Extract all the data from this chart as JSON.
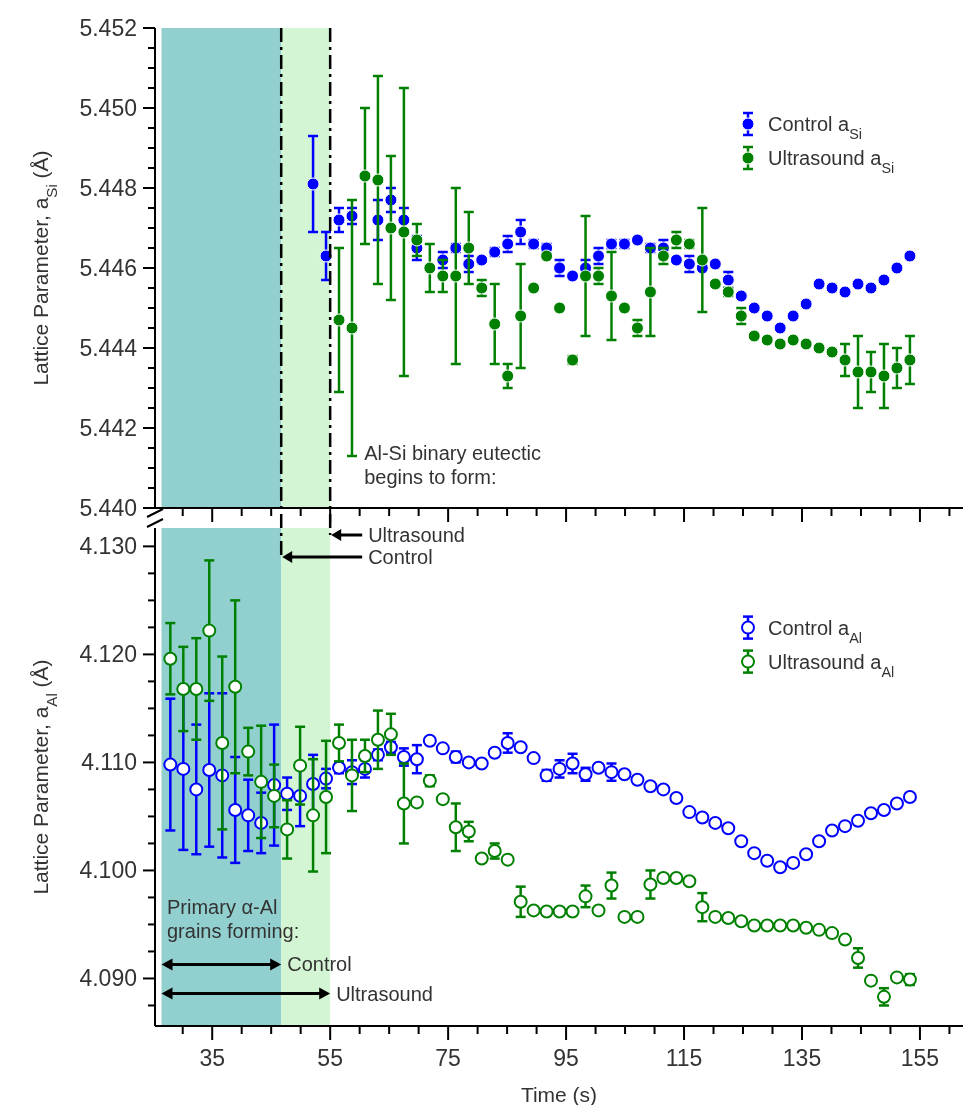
{
  "chart_data": [
    {
      "type": "scatter",
      "ylabel": "Lattice Parameter, a$_{Si}$ (Å)",
      "xlim": [
        25.3,
        162.3
      ],
      "ylim": [
        5.44,
        5.452
      ],
      "xticks": [
        {
          "value": 30,
          "label": null
        },
        35,
        {
          "value": 40,
          "label": null
        },
        {
          "value": 45,
          "label": null
        },
        {
          "value": 50,
          "label": null
        },
        55,
        {
          "value": 60,
          "label": null
        },
        {
          "value": 65,
          "label": null
        },
        {
          "value": 70,
          "label": null
        },
        75,
        {
          "value": 80,
          "label": null
        },
        {
          "value": 85,
          "label": null
        },
        {
          "value": 90,
          "label": null
        },
        95,
        {
          "value": 100,
          "label": null
        },
        {
          "value": 105,
          "label": null
        },
        {
          "value": 110,
          "label": null
        },
        115,
        {
          "value": 120,
          "label": null
        },
        {
          "value": 125,
          "label": null
        },
        {
          "value": 130,
          "label": null
        },
        135,
        {
          "value": 140,
          "label": null
        },
        {
          "value": 145,
          "label": null
        },
        {
          "value": 150,
          "label": null
        },
        155,
        {
          "value": 160,
          "label": null
        }
      ],
      "yticks": [
        {
          "value": 5.44,
          "label": "5.440"
        },
        {
          "value": 5.4405,
          "label": null
        },
        {
          "value": 5.441,
          "label": null
        },
        {
          "value": 5.4415,
          "label": null
        },
        {
          "value": 5.442,
          "label": "5.442"
        },
        {
          "value": 5.4425,
          "label": null
        },
        {
          "value": 5.443,
          "label": null
        },
        {
          "value": 5.4435,
          "label": null
        },
        {
          "value": 5.444,
          "label": "5.444"
        },
        {
          "value": 5.4445,
          "label": null
        },
        {
          "value": 5.445,
          "label": null
        },
        {
          "value": 5.4455,
          "label": null
        },
        {
          "value": 5.446,
          "label": "5.446"
        },
        {
          "value": 5.4465,
          "label": null
        },
        {
          "value": 5.447,
          "label": null
        },
        {
          "value": 5.4475,
          "label": null
        },
        {
          "value": 5.448,
          "label": "5.448"
        },
        {
          "value": 5.4485,
          "label": null
        },
        {
          "value": 5.449,
          "label": null
        },
        {
          "value": 5.4495,
          "label": null
        },
        {
          "value": 5.45,
          "label": "5.450"
        },
        {
          "value": 5.4505,
          "label": null
        },
        {
          "value": 5.451,
          "label": null
        },
        {
          "value": 5.4515,
          "label": null
        },
        {
          "value": 5.452,
          "label": "5.452"
        }
      ],
      "tick_labels": "y",
      "grid": false,
      "legend": "top right",
      "marker": "circle",
      "bands": [
        {
          "axis": "x",
          "from": 26.4,
          "to": 46.7,
          "color": "#92d0cf"
        },
        {
          "axis": "x",
          "from": 46.7,
          "to": 55,
          "color": "#d3f5d3"
        }
      ],
      "ref_lines": [
        {
          "axis": "x",
          "value": 55,
          "label": "Ultrasound",
          "line_style": "dashed",
          "color": "#000000"
        },
        {
          "axis": "x",
          "value": 46.7,
          "label": "Control",
          "line_style": "dashed",
          "color": "#000000"
        }
      ],
      "annotations": [
        "Al-Si binary eutectic\nbegins to form:"
      ],
      "series": [
        {
          "name": "Control a$_{Si}$",
          "color": "#0000ff",
          "x": [
            52.1,
            54.3,
            56.5,
            58.7,
            63.1,
            65.3,
            67.5,
            69.7,
            74.1,
            76.3,
            78.5,
            80.7,
            82.9,
            85.1,
            87.3,
            89.5,
            91.7,
            93.9,
            96.1,
            98.3,
            100.5,
            102.7,
            104.9,
            107.1,
            109.3,
            111.5,
            113.7,
            115.9,
            118.1,
            120.3,
            122.5,
            124.7,
            126.9,
            129.1,
            131.3,
            133.5,
            135.7,
            137.9,
            140.1,
            142.3,
            144.5,
            146.7,
            148.9,
            151.1,
            153.3
          ],
          "values": [
            5.4481,
            5.4463,
            5.4472,
            5.4473,
            5.4472,
            5.4477,
            5.4472,
            5.4465,
            5.4462,
            5.4465,
            5.4461,
            5.4462,
            5.4464,
            5.4466,
            5.4469,
            5.4466,
            5.4465,
            5.446,
            5.4458,
            5.446,
            5.4463,
            5.4466,
            5.4466,
            5.4467,
            5.4465,
            5.4465,
            5.4462,
            5.4461,
            5.446,
            5.4461,
            5.4457,
            5.4453,
            5.445,
            5.4448,
            5.4445,
            5.4448,
            5.4451,
            5.4456,
            5.4455,
            5.4454,
            5.4456,
            5.4455,
            5.4457,
            5.446,
            5.4463
          ],
          "errors": [
            0.0012,
            0.0006,
            0.0003,
            0.0002,
            0.0005,
            0.0003,
            0.0003,
            0.0003,
            0.0002,
            0.0001,
            0.0002,
            null,
            0.0001,
            0.0002,
            0.0003,
            0.0001,
            0.0001,
            0.0002,
            null,
            0.0002,
            0.0002,
            0.0001,
            0.0001,
            null,
            0.0001,
            0.0002,
            null,
            0.0002,
            null,
            null,
            0.0002,
            null,
            null,
            null,
            null,
            null,
            null,
            null,
            null,
            null,
            null,
            null,
            null,
            null,
            null
          ]
        },
        {
          "name": "Ultrasound a$_{Si}$",
          "color": "#008000",
          "x": [
            56.5,
            58.7,
            60.9,
            63.1,
            65.3,
            67.5,
            69.7,
            71.9,
            74.1,
            76.3,
            78.5,
            80.7,
            82.9,
            85.1,
            87.3,
            89.5,
            91.7,
            93.9,
            96.1,
            98.3,
            100.5,
            102.7,
            104.9,
            107.1,
            109.3,
            111.5,
            113.7,
            115.9,
            118.1,
            120.3,
            122.5,
            124.7,
            126.9,
            129.1,
            131.3,
            133.5,
            135.7,
            137.9,
            140.1,
            142.3,
            144.5,
            146.7,
            148.9,
            151.1,
            153.3
          ],
          "values": [
            5.4447,
            5.4445,
            5.4483,
            5.4482,
            5.447,
            5.4469,
            5.4467,
            5.446,
            5.4458,
            5.4458,
            5.4465,
            5.4455,
            5.4446,
            5.4433,
            5.4448,
            5.4455,
            5.4463,
            5.445,
            5.4437,
            5.4458,
            5.4458,
            5.4453,
            5.445,
            5.4445,
            5.4454,
            5.4463,
            5.4467,
            5.4466,
            5.4462,
            5.4456,
            5.4454,
            5.4448,
            5.4443,
            5.4442,
            5.4441,
            5.4442,
            5.4441,
            5.444,
            5.4439,
            5.4437,
            5.4434,
            5.4434,
            5.4433,
            5.4435,
            5.4437
          ],
          "errors": [
            0.0018,
            0.0032,
            0.0017,
            0.0026,
            0.0018,
            0.0036,
            0.0004,
            0.0006,
            0.0004,
            0.0022,
            0.0009,
            0.0002,
            0.001,
            0.0003,
            0.0013,
            null,
            null,
            null,
            0.0001,
            0.0015,
            0.0002,
            0.0011,
            null,
            0.0002,
            0.0011,
            0.0002,
            0.0002,
            0.0001,
            0.0013,
            null,
            0.0001,
            0.0002,
            null,
            null,
            null,
            null,
            null,
            null,
            null,
            0.0004,
            0.0009,
            0.0005,
            0.0008,
            0.0005,
            0.0006
          ]
        }
      ]
    },
    {
      "type": "scatter",
      "xlabel": "Time (s)",
      "ylabel": "Lattice Parameter, a$_{Al}$ (Å)",
      "xlim": [
        25.3,
        162.3
      ],
      "ylim": [
        4.0856,
        4.1317
      ],
      "xticks": [
        {
          "value": 30,
          "label": null
        },
        35,
        {
          "value": 40,
          "label": null
        },
        {
          "value": 45,
          "label": null
        },
        {
          "value": 50,
          "label": null
        },
        55,
        {
          "value": 60,
          "label": null
        },
        {
          "value": 65,
          "label": null
        },
        {
          "value": 70,
          "label": null
        },
        75,
        {
          "value": 80,
          "label": null
        },
        {
          "value": 85,
          "label": null
        },
        {
          "value": 90,
          "label": null
        },
        95,
        {
          "value": 100,
          "label": null
        },
        {
          "value": 105,
          "label": null
        },
        {
          "value": 110,
          "label": null
        },
        115,
        {
          "value": 120,
          "label": null
        },
        {
          "value": 125,
          "label": null
        },
        {
          "value": 130,
          "label": null
        },
        135,
        {
          "value": 140,
          "label": null
        },
        {
          "value": 145,
          "label": null
        },
        {
          "value": 150,
          "label": null
        },
        155,
        {
          "value": 160,
          "label": null
        }
      ],
      "yticks": [
        {
          "value": 4.0875,
          "label": null
        },
        {
          "value": 4.09,
          "label": "4.090"
        },
        {
          "value": 4.0925,
          "label": null
        },
        {
          "value": 4.095,
          "label": null
        },
        {
          "value": 4.0975,
          "label": null
        },
        {
          "value": 4.1,
          "label": "4.100"
        },
        {
          "value": 4.1025,
          "label": null
        },
        {
          "value": 4.105,
          "label": null
        },
        {
          "value": 4.1075,
          "label": null
        },
        {
          "value": 4.11,
          "label": "4.110"
        },
        {
          "value": 4.1125,
          "label": null
        },
        {
          "value": 4.115,
          "label": null
        },
        {
          "value": 4.1175,
          "label": null
        },
        {
          "value": 4.12,
          "label": "4.120"
        },
        {
          "value": 4.1225,
          "label": null
        },
        {
          "value": 4.125,
          "label": null
        },
        {
          "value": 4.1275,
          "label": null
        },
        {
          "value": 4.13,
          "label": "4.130"
        }
      ],
      "grid": false,
      "legend": "top right",
      "marker": "circle",
      "bands": [
        {
          "axis": "x",
          "from": 26.4,
          "to": 46.7,
          "color": "#92d0cf"
        },
        {
          "axis": "x",
          "from": 46.7,
          "to": 55,
          "color": "#d3f5d3"
        }
      ],
      "annotations": [
        "Primary α-Al\ngrains forming:",
        {
          "text": "Control",
          "x": 46.7,
          "y": 4.0913
        },
        {
          "text": "Ultrasound",
          "x": 55,
          "y": 4.0886
        }
      ],
      "series": [
        {
          "name": "Control a$_{Al}$",
          "color": "#0000ff",
          "x": [
            27.9,
            30.1,
            32.3,
            34.5,
            36.7,
            38.9,
            41.1,
            43.3,
            45.5,
            47.7,
            49.9,
            52.1,
            54.3,
            56.5,
            58.7,
            60.9,
            63.1,
            65.3,
            67.5,
            69.7,
            71.9,
            74.1,
            76.3,
            78.5,
            80.7,
            82.9,
            85.1,
            87.3,
            89.5,
            91.7,
            93.9,
            96.1,
            98.3,
            100.5,
            102.7,
            104.9,
            107.1,
            109.3,
            111.5,
            113.7,
            115.9,
            118.1,
            120.3,
            122.5,
            124.7,
            126.9,
            129.1,
            131.3,
            133.5,
            135.7,
            137.9,
            140.1,
            142.3,
            144.5,
            146.7,
            148.9,
            151.1,
            153.3
          ],
          "values": [
            4.1098,
            4.1094,
            4.1075,
            4.1093,
            4.1088,
            4.1056,
            4.1051,
            4.1044,
            4.1079,
            4.1071,
            4.1069,
            4.108,
            4.1085,
            4.1095,
            4.1091,
            4.1094,
            4.1107,
            4.1114,
            4.1105,
            4.1103,
            4.112,
            4.1113,
            4.1105,
            4.11,
            4.1099,
            4.1109,
            4.1118,
            4.1114,
            4.1104,
            4.1088,
            4.1094,
            4.1099,
            4.1089,
            4.1095,
            4.1091,
            4.1089,
            4.1084,
            4.1078,
            4.1075,
            4.1067,
            4.1054,
            4.1049,
            4.1044,
            4.1039,
            4.1027,
            4.1016,
            4.1009,
            4.1003,
            4.1007,
            4.1015,
            4.1027,
            4.1037,
            4.1041,
            4.1046,
            4.1053,
            4.1056,
            4.1062,
            4.1068
          ],
          "errors": [
            0.0061,
            0.0075,
            0.006,
            0.0071,
            0.0076,
            0.0049,
            0.0033,
            0.0028,
            0.0056,
            0.0015,
            0.0028,
            0.0027,
            0.0009,
            0.0005,
            0.0011,
            0.0008,
            0.0005,
            0.0005,
            0.0008,
            0.0013,
            null,
            null,
            0.0005,
            null,
            null,
            null,
            0.0009,
            null,
            null,
            0.0005,
            0.0008,
            0.0009,
            0.0006,
            null,
            0.0008,
            null,
            null,
            null,
            null,
            null,
            null,
            null,
            null,
            null,
            null,
            null,
            null,
            null,
            null,
            null,
            null,
            null,
            null,
            null,
            null,
            null,
            null,
            null
          ]
        },
        {
          "name": "Ultrasound a$_{Al}$",
          "color": "#008000",
          "x": [
            27.9,
            30.1,
            32.3,
            34.5,
            36.7,
            38.9,
            41.1,
            43.3,
            45.5,
            47.7,
            49.9,
            52.1,
            54.3,
            56.5,
            58.7,
            60.9,
            63.1,
            65.3,
            67.5,
            69.7,
            71.9,
            74.1,
            76.3,
            78.5,
            80.7,
            82.9,
            85.1,
            87.3,
            89.5,
            91.7,
            93.9,
            96.1,
            98.3,
            100.5,
            102.7,
            104.9,
            107.1,
            109.3,
            111.5,
            113.7,
            115.9,
            118.1,
            120.3,
            122.5,
            124.7,
            126.9,
            129.1,
            131.3,
            133.5,
            135.7,
            137.9,
            140.1,
            142.3,
            144.5,
            146.7,
            148.9,
            151.1,
            153.3
          ],
          "values": [
            4.1196,
            4.1168,
            4.1168,
            4.1222,
            4.1118,
            4.117,
            4.111,
            4.1082,
            4.1069,
            4.1038,
            4.1097,
            4.1051,
            4.1068,
            4.1118,
            4.1088,
            4.1106,
            4.1121,
            4.1126,
            4.1062,
            4.1063,
            4.1083,
            4.1066,
            4.104,
            4.1036,
            4.1011,
            4.1018,
            4.101,
            4.0971,
            4.0963,
            4.0962,
            4.0962,
            4.0962,
            4.0976,
            4.0963,
            4.0986,
            4.0957,
            4.0957,
            4.0987,
            4.0993,
            4.0993,
            4.099,
            4.0966,
            4.0957,
            4.0956,
            4.0953,
            4.0949,
            4.0949,
            4.0949,
            4.0949,
            4.0947,
            4.0945,
            4.0942,
            4.0936,
            4.0919,
            4.0898,
            4.0883,
            4.0901,
            4.0899
          ],
          "errors": [
            0.0033,
            0.0039,
            0.0047,
            0.0065,
            0.008,
            0.008,
            0.0022,
            0.0052,
            0.0029,
            0.0027,
            0.0036,
            0.0052,
            0.0052,
            0.0017,
            0.0033,
            0.0015,
            0.0027,
            0.0019,
            0.0037,
            0.0003,
            0.0005,
            null,
            0.0022,
            0.0009,
            null,
            0.0007,
            null,
            0.0014,
            null,
            null,
            null,
            null,
            0.001,
            null,
            0.0012,
            null,
            null,
            0.0013,
            null,
            null,
            null,
            0.0013,
            null,
            null,
            null,
            null,
            null,
            null,
            null,
            null,
            null,
            null,
            null,
            0.0009,
            null,
            0.0008,
            null,
            0.0005
          ]
        }
      ]
    }
  ]
}
